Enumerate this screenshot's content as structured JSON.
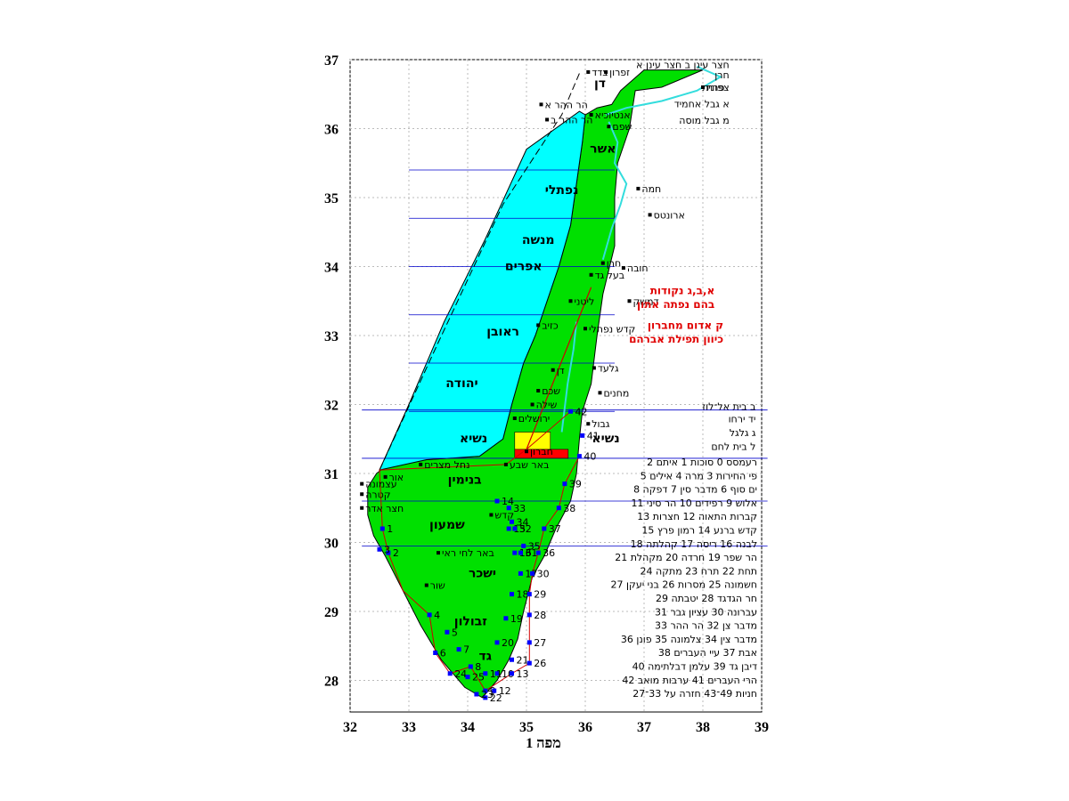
{
  "map": {
    "caption": "מפה 1",
    "x_ticks": [
      "32",
      "33",
      "34",
      "35",
      "36",
      "37",
      "38",
      "39"
    ],
    "y_ticks": [
      "37",
      "36",
      "35",
      "34",
      "33",
      "32",
      "31",
      "30",
      "29",
      "28"
    ],
    "colors": {
      "land": "#00e000",
      "west_tribes": "#00ffff",
      "rivers": "#33dddd",
      "route": "#d00000",
      "stations": "#0000ff",
      "grid": "#bbbbbb"
    },
    "tribes": [
      {
        "name": "דן",
        "lon": 36.25,
        "lat": 36.6
      },
      {
        "name": "אשר",
        "lon": 36.3,
        "lat": 35.65
      },
      {
        "name": "נפתלי",
        "lon": 35.6,
        "lat": 35.05
      },
      {
        "name": "מנשה",
        "lon": 35.2,
        "lat": 34.33
      },
      {
        "name": "אפרים",
        "lon": 34.95,
        "lat": 33.95
      },
      {
        "name": "ראובן",
        "lon": 34.6,
        "lat": 33.0
      },
      {
        "name": "יהודה",
        "lon": 33.9,
        "lat": 32.25
      },
      {
        "name": "נשיא",
        "lon": 34.1,
        "lat": 31.45
      },
      {
        "name": "נשיא",
        "lon": 36.35,
        "lat": 31.45
      },
      {
        "name": "בנימין",
        "lon": 33.95,
        "lat": 30.85
      },
      {
        "name": "שמעון",
        "lon": 33.65,
        "lat": 30.2
      },
      {
        "name": "ישכר",
        "lon": 34.25,
        "lat": 29.5
      },
      {
        "name": "זבולון",
        "lon": 34.05,
        "lat": 28.8
      },
      {
        "name": "גד",
        "lon": 34.3,
        "lat": 28.3
      }
    ],
    "places": [
      {
        "name": "צדד",
        "lon": 36.05,
        "lat": 36.82
      },
      {
        "name": "זפרון",
        "lon": 36.35,
        "lat": 36.82
      },
      {
        "name": "הר ההר א",
        "lon": 35.25,
        "lat": 36.35
      },
      {
        "name": "הר ההר ב",
        "lon": 35.35,
        "lat": 36.13
      },
      {
        "name": "אנטיוכיא",
        "lon": 36.1,
        "lat": 36.2
      },
      {
        "name": "שפם",
        "lon": 36.4,
        "lat": 36.03
      },
      {
        "name": "חמה",
        "lon": 36.9,
        "lat": 35.13
      },
      {
        "name": "ארונטס",
        "lon": 37.1,
        "lat": 34.75
      },
      {
        "name": "חרן",
        "lon": 36.3,
        "lat": 34.05
      },
      {
        "name": "בעל גד",
        "lon": 36.1,
        "lat": 33.88
      },
      {
        "name": "חובה",
        "lon": 36.65,
        "lat": 33.98
      },
      {
        "name": "ליטני",
        "lon": 35.75,
        "lat": 33.5
      },
      {
        "name": "דמשק",
        "lon": 36.75,
        "lat": 33.5
      },
      {
        "name": "כזיב",
        "lon": 35.2,
        "lat": 33.15
      },
      {
        "name": "קדש נפתלי",
        "lon": 36.0,
        "lat": 33.1
      },
      {
        "name": "גלעד",
        "lon": 36.15,
        "lat": 32.53
      },
      {
        "name": "דן",
        "lon": 35.45,
        "lat": 32.5
      },
      {
        "name": "מחנים",
        "lon": 36.25,
        "lat": 32.17
      },
      {
        "name": "שכם",
        "lon": 35.2,
        "lat": 32.2
      },
      {
        "name": "שילה",
        "lon": 35.1,
        "lat": 32.0
      },
      {
        "name": "ירושלים",
        "lon": 34.8,
        "lat": 31.8
      },
      {
        "name": "חברון",
        "lon": 35.0,
        "lat": 31.32
      },
      {
        "name": "באר שבע",
        "lon": 34.65,
        "lat": 31.13
      },
      {
        "name": "נחל מצרים",
        "lon": 33.2,
        "lat": 31.13
      },
      {
        "name": "עצמונה",
        "lon": 32.2,
        "lat": 30.85
      },
      {
        "name": "קטרה",
        "lon": 32.2,
        "lat": 30.7
      },
      {
        "name": "חצר אדר",
        "lon": 32.2,
        "lat": 30.5
      },
      {
        "name": "אור",
        "lon": 32.6,
        "lat": 30.95
      },
      {
        "name": "קדש",
        "lon": 34.4,
        "lat": 30.4
      },
      {
        "name": "באר לחי ראי",
        "lon": 33.5,
        "lat": 29.85
      },
      {
        "name": "שור",
        "lon": 33.3,
        "lat": 29.38
      },
      {
        "name": "גבול",
        "lon": 36.05,
        "lat": 31.72
      },
      {
        "name": "פרת",
        "lon": 38.0,
        "lat": 36.6
      }
    ],
    "legend_left": [
      {
        "label": "חצר עינן ב  חצר עינן א",
        "lon": 38.45,
        "lat": 36.88
      },
      {
        "label": "חרן",
        "lon": 38.45,
        "lat": 36.73
      },
      {
        "label": "צפונית",
        "lon": 38.45,
        "lat": 36.55
      },
      {
        "label": "א גבל אחמיד",
        "lon": 38.45,
        "lat": 36.31
      },
      {
        "label": "מ גבל מוסה",
        "lon": 38.45,
        "lat": 36.07
      }
    ],
    "red_notes": [
      {
        "text": "א,ב,ג נקודות",
        "lon": 38.2,
        "lat": 33.6
      },
      {
        "text": "בהם נפתה אתון",
        "lon": 38.2,
        "lat": 33.4
      },
      {
        "text": "ק אדום מחברון",
        "lon": 38.35,
        "lat": 33.1
      },
      {
        "text": "כיוון תפילת אברהם",
        "lon": 38.35,
        "lat": 32.9
      }
    ],
    "corner_labels": [
      {
        "text": "ב  בית אל־לוז",
        "lon": 38.9,
        "lat": 31.92
      },
      {
        "text": "יד  ירחו",
        "lon": 38.9,
        "lat": 31.74
      },
      {
        "text": "ג  גלגל",
        "lon": 38.9,
        "lat": 31.54
      },
      {
        "text": "ל  בית לחם",
        "lon": 38.9,
        "lat": 31.34
      }
    ],
    "stations_legend": [
      "רעמסס 0 סוכות 1 איתם 2",
      "פי החירות 3 מרה 4 אילים 5",
      "ים סוף 6 מדבר סין 7 דפקה 8",
      "אלוש 9 רפידים 10 הר סיני 11",
      "קברות התאוה 12 חצרות 13",
      "קדש ברנע 14 רמון פרץ 15",
      "לבנה 16 ריסה 17 קהלתה 18",
      "הר שפר 19 חרדה 20 מקהלת 21",
      "תחת 22 תרח 23 מתקה 24",
      "חשמונה 25 מסרות 26 בני יעקן 27",
      "חר הגדגד 28 יטבתה 29",
      "עברונה 30 עציון גבר 31",
      "מדבר צן 32 הר ההר 33",
      "מדבר צין 34 צלמונה 35 פונן 36",
      "אבת 37 עיי העברים 38",
      "דיבן גד 39 עלמן דבלתימה 40",
      "הרי העברים 41 ערבות מואב 42",
      "חניות 49־43 חזרה על 33־27"
    ],
    "stations": [
      {
        "n": "1",
        "lon": 32.55,
        "lat": 30.2
      },
      {
        "n": "2",
        "lon": 32.65,
        "lat": 29.85
      },
      {
        "n": "3",
        "lon": 32.5,
        "lat": 29.9
      },
      {
        "n": "4",
        "lon": 33.35,
        "lat": 28.95
      },
      {
        "n": "5",
        "lon": 33.65,
        "lat": 28.7
      },
      {
        "n": "6",
        "lon": 33.45,
        "lat": 28.4
      },
      {
        "n": "7",
        "lon": 33.85,
        "lat": 28.45
      },
      {
        "n": "8",
        "lon": 34.05,
        "lat": 28.2
      },
      {
        "n": "9",
        "lon": 34.3,
        "lat": 27.85
      },
      {
        "n": "10",
        "lon": 34.5,
        "lat": 28.1
      },
      {
        "n": "11",
        "lon": 34.3,
        "lat": 28.1
      },
      {
        "n": "12",
        "lon": 34.45,
        "lat": 27.85
      },
      {
        "n": "13",
        "lon": 34.75,
        "lat": 28.1
      },
      {
        "n": "14",
        "lon": 34.5,
        "lat": 30.6
      },
      {
        "n": "15",
        "lon": 34.7,
        "lat": 30.2
      },
      {
        "n": "16",
        "lon": 34.8,
        "lat": 29.85
      },
      {
        "n": "17",
        "lon": 34.9,
        "lat": 29.55
      },
      {
        "n": "18",
        "lon": 34.75,
        "lat": 29.25
      },
      {
        "n": "19",
        "lon": 34.65,
        "lat": 28.9
      },
      {
        "n": "20",
        "lon": 34.5,
        "lat": 28.55
      },
      {
        "n": "21",
        "lon": 34.75,
        "lat": 28.3
      },
      {
        "n": "22",
        "lon": 34.3,
        "lat": 27.75
      },
      {
        "n": "23",
        "lon": 34.15,
        "lat": 27.8
      },
      {
        "n": "24",
        "lon": 33.7,
        "lat": 28.1
      },
      {
        "n": "25",
        "lon": 34.0,
        "lat": 28.05
      },
      {
        "n": "26",
        "lon": 35.05,
        "lat": 28.25
      },
      {
        "n": "27",
        "lon": 35.05,
        "lat": 28.55
      },
      {
        "n": "28",
        "lon": 35.05,
        "lat": 28.95
      },
      {
        "n": "29",
        "lon": 35.05,
        "lat": 29.25
      },
      {
        "n": "30",
        "lon": 35.1,
        "lat": 29.55
      },
      {
        "n": "31",
        "lon": 34.9,
        "lat": 29.85
      },
      {
        "n": "32",
        "lon": 34.8,
        "lat": 30.2
      },
      {
        "n": "33",
        "lon": 34.7,
        "lat": 30.5
      },
      {
        "n": "34",
        "lon": 34.75,
        "lat": 30.3
      },
      {
        "n": "35",
        "lon": 34.95,
        "lat": 29.95
      },
      {
        "n": "36",
        "lon": 35.2,
        "lat": 29.85
      },
      {
        "n": "37",
        "lon": 35.3,
        "lat": 30.2
      },
      {
        "n": "38",
        "lon": 35.55,
        "lat": 30.5
      },
      {
        "n": "39",
        "lon": 35.65,
        "lat": 30.85
      },
      {
        "n": "40",
        "lon": 35.9,
        "lat": 31.25
      },
      {
        "n": "41",
        "lon": 35.95,
        "lat": 31.55
      },
      {
        "n": "42",
        "lon": 35.75,
        "lat": 31.9
      }
    ]
  }
}
